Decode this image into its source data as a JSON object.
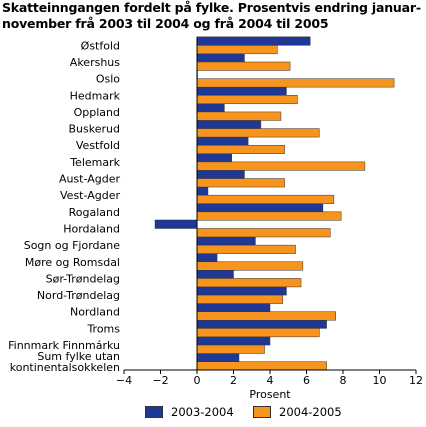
{
  "chart_data": {
    "type": "bar",
    "orientation": "horizontal",
    "title": "Skatteinngangen fordelt på fylke. Prosentvis endring januar-november frå 2003 til 2004 og frå 2004 til 2005",
    "title_lines": [
      "Skatteinngangen fordelt på fylke. Prosentvis endring januar-",
      "november frå 2003 til 2004 og frå 2004 til 2005"
    ],
    "xlabel": "Prosent",
    "ylabel": "",
    "xlim": [
      -4,
      12
    ],
    "xticks": [
      -4,
      -2,
      0,
      2,
      4,
      6,
      8,
      10,
      12
    ],
    "grid": false,
    "legend_position": "bottom",
    "categories": [
      "Østfold",
      "Akershus",
      "Oslo",
      "Hedmark",
      "Oppland",
      "Buskerud",
      "Vestfold",
      "Telemark",
      "Aust-Agder",
      "Vest-Agder",
      "Rogaland",
      "Hordaland",
      "Sogn og Fjordane",
      "Møre og Romsdal",
      "Sør-Trøndelag",
      "Nord-Trøndelag",
      "Nordland",
      "Troms",
      "Finnmark Finnmárku",
      "Sum fylke utan kontinentalsokkelen"
    ],
    "category_lines": [
      [
        "Østfold"
      ],
      [
        "Akershus"
      ],
      [
        "Oslo"
      ],
      [
        "Hedmark"
      ],
      [
        "Oppland"
      ],
      [
        "Buskerud"
      ],
      [
        "Vestfold"
      ],
      [
        "Telemark"
      ],
      [
        "Aust-Agder"
      ],
      [
        "Vest-Agder"
      ],
      [
        "Rogaland"
      ],
      [
        "Hordaland"
      ],
      [
        "Sogn og Fjordane"
      ],
      [
        "Møre og Romsdal"
      ],
      [
        "Sør-Trøndelag"
      ],
      [
        "Nord-Trøndelag"
      ],
      [
        "Nordland"
      ],
      [
        "Troms"
      ],
      [
        "Finnmark Finnmárku"
      ],
      [
        "Sum fylke utan",
        "kontinentalsokkelen"
      ]
    ],
    "series": [
      {
        "name": "2003-2004",
        "color": "#1f3896",
        "values": [
          6.2,
          2.6,
          0.0,
          4.9,
          1.5,
          3.5,
          2.8,
          1.9,
          2.6,
          0.6,
          6.9,
          -2.3,
          3.2,
          1.1,
          2.0,
          4.9,
          4.0,
          7.1,
          4.0,
          2.3
        ]
      },
      {
        "name": "2004-2005",
        "color": "#f7941d",
        "values": [
          4.4,
          5.1,
          10.8,
          5.5,
          4.6,
          6.7,
          4.8,
          9.2,
          4.8,
          7.5,
          7.9,
          7.3,
          5.4,
          5.8,
          5.7,
          4.7,
          7.6,
          6.7,
          3.7,
          7.1
        ]
      }
    ]
  }
}
